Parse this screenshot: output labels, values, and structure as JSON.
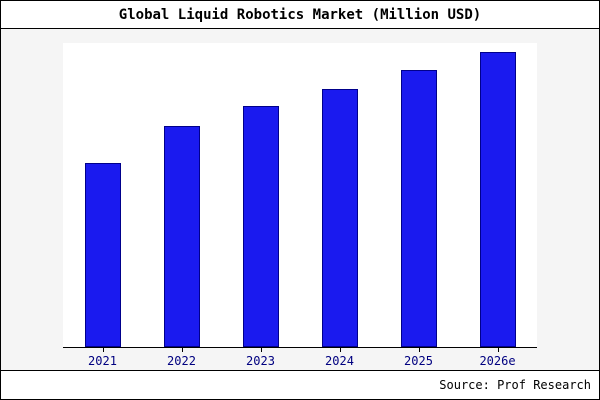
{
  "chart_data": {
    "type": "bar",
    "title": "Global Liquid Robotics Market (Million USD)",
    "categories": [
      "2021",
      "2022",
      "2023",
      "2024",
      "2025",
      "2026e"
    ],
    "values": [
      62.5,
      75,
      81.5,
      87.5,
      94,
      100
    ],
    "ylim": [
      0,
      103
    ],
    "xlabel": "",
    "ylabel": "",
    "grid": false,
    "legend": false,
    "bar_fill": "#1a1aef",
    "bar_border": "#00008b"
  },
  "source": "Source: Prof Research",
  "colors": {
    "background": "#f5f5f5",
    "plot_background": "#ffffff",
    "frame": "#000000",
    "tick_label": "#000080"
  }
}
